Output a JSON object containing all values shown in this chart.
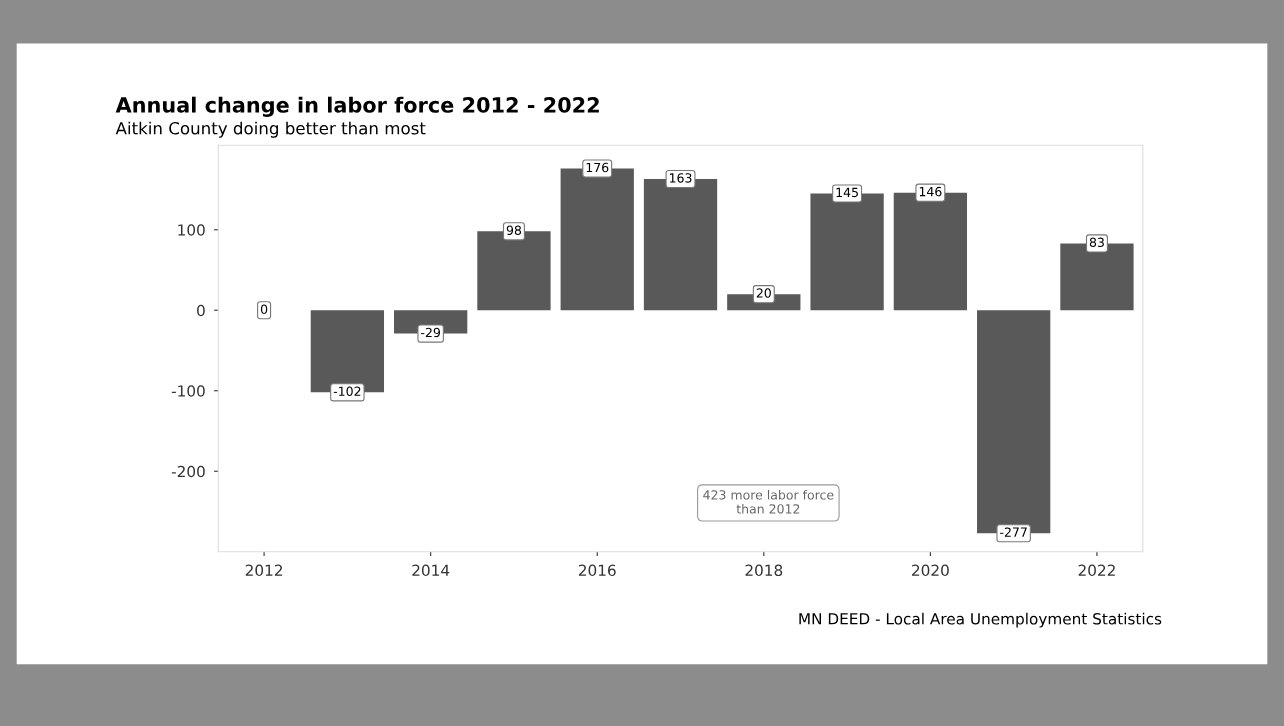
{
  "chart_data": {
    "type": "bar",
    "title": "Annual change in labor force 2012 - 2022",
    "subtitle": "Aitkin County doing better than most",
    "x": [
      2012,
      2013,
      2014,
      2015,
      2016,
      2017,
      2018,
      2019,
      2020,
      2021,
      2022
    ],
    "values": [
      0,
      -102,
      -29,
      98,
      176,
      163,
      20,
      145,
      146,
      -277,
      83
    ],
    "color": "#595959",
    "data_labels": true,
    "xlim": [
      2011.45,
      2022.55
    ],
    "xticks": [
      2012,
      2014,
      2016,
      2018,
      2020,
      2022
    ],
    "ylim": [
      -300,
      205
    ],
    "yticks": [
      -200,
      -100,
      0,
      100
    ],
    "grid": false,
    "legend": false,
    "annotations": [
      "423 more labor force\nthan 2012",
      "MN DEED - Local Area Unemployment Statistics"
    ]
  }
}
